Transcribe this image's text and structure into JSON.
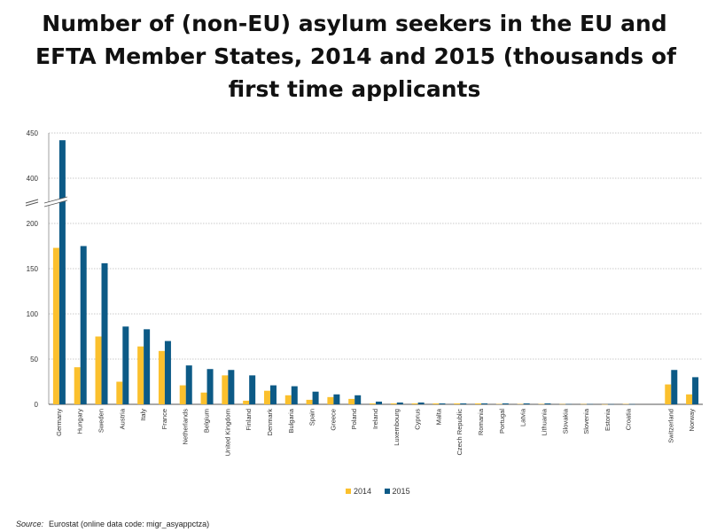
{
  "chart_data": {
    "type": "bar",
    "title_lines": [
      "Number of (non-EU) asylum seekers in the EU and",
      "EFTA Member States, 2014 and 2015 (thousands of",
      "first time applicants"
    ],
    "categories": [
      "Germany",
      "Hungary",
      "Sweden",
      "Austria",
      "Italy",
      "France",
      "Netherlands",
      "Belgium",
      "United Kingdom",
      "Finland",
      "Denmark",
      "Bulgaria",
      "Spain",
      "Greece",
      "Poland",
      "Ireland",
      "Luxembourg",
      "Cyprus",
      "Malta",
      "Czech Republic",
      "Romania",
      "Portugal",
      "Latvia",
      "Lithuania",
      "Slovakia",
      "Slovenia",
      "Estonia",
      "Croatia",
      "",
      "Switzerland",
      "Norway"
    ],
    "series": [
      {
        "name": "2014",
        "color": "#FBC02D",
        "values": [
          173,
          41,
          75,
          25,
          64,
          59,
          21,
          13,
          32,
          4,
          15,
          10,
          5,
          8,
          6,
          1,
          1,
          1,
          1,
          1,
          1,
          0.4,
          0.4,
          0.4,
          0.3,
          0.3,
          0.1,
          0.4,
          null,
          22,
          11
        ]
      },
      {
        "name": "2015",
        "color": "#0C5A86",
        "values": [
          442,
          175,
          156,
          86,
          83,
          70,
          43,
          39,
          38,
          32,
          21,
          20,
          14,
          11,
          10,
          3,
          2,
          2,
          1,
          1,
          1,
          1,
          1,
          1,
          0.3,
          0.3,
          0.2,
          0.2,
          null,
          38,
          30
        ]
      }
    ],
    "yticks": [
      0,
      50,
      100,
      150,
      200,
      400,
      450
    ],
    "ylim": [
      0,
      450
    ],
    "axis_break": {
      "from": 200,
      "to": 400
    },
    "xlabel": "",
    "ylabel": "",
    "grid": true,
    "legend_position": "bottom-center"
  },
  "source": {
    "label": "Source:",
    "text": "Eurostat (online data code: migr_asyappctza)"
  }
}
